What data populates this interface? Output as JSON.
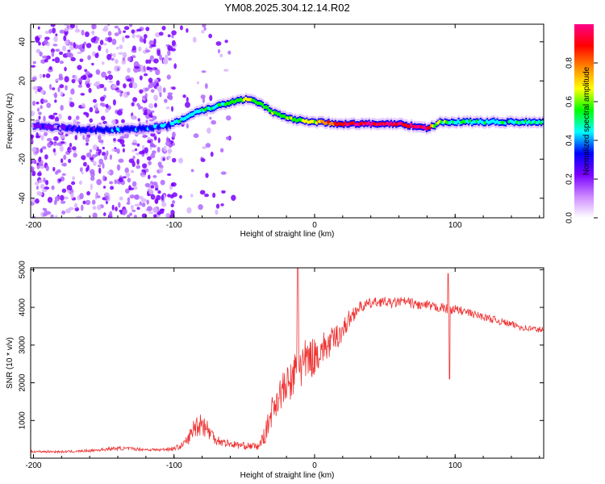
{
  "chart_data": [
    {
      "type": "heatmap",
      "title": "YM08.2025.304.12.14.R02",
      "xlabel": "Height of straight line (km)",
      "ylabel": "Frequency (Hz)",
      "xlim": [
        -202,
        163
      ],
      "ylim": [
        -50,
        49
      ],
      "xticks": [
        -200,
        -100,
        0,
        100
      ],
      "yticks": [
        -40,
        -20,
        0,
        20,
        40
      ],
      "colorbar": {
        "label": "Normalized spectral amplitude",
        "range": [
          0,
          1
        ],
        "ticks": [
          0.0,
          0.2,
          0.4,
          0.6,
          0.8
        ],
        "tick_labels": [
          "0.0",
          "0.2",
          "0.4",
          "0.6",
          "0.8"
        ],
        "colors": [
          "#ffffff",
          "#cc88ff",
          "#7a00ff",
          "#0000ff",
          "#00ffff",
          "#00ff00",
          "#ffff00",
          "#ff8800",
          "#ff0000",
          "#ff0088"
        ]
      },
      "ridge": {
        "x": [
          -200,
          -180,
          -160,
          -140,
          -120,
          -105,
          -95,
          -85,
          -75,
          -65,
          -55,
          -45,
          -40,
          -30,
          -20,
          -10,
          0,
          20,
          40,
          60,
          70,
          75,
          80,
          85,
          90,
          100,
          120,
          140,
          163
        ],
        "frequency": [
          -3,
          -4,
          -5,
          -5,
          -4,
          -3,
          0,
          4,
          6,
          8,
          10,
          11,
          9,
          4,
          1,
          0,
          -1,
          -2,
          -2,
          -2,
          -3,
          -4,
          -4,
          -3,
          -1,
          -1,
          -1,
          -1,
          -1
        ],
        "amplitude": [
          0.15,
          0.18,
          0.28,
          0.3,
          0.3,
          0.35,
          0.38,
          0.42,
          0.45,
          0.48,
          0.5,
          0.55,
          0.52,
          0.5,
          0.5,
          0.55,
          0.6,
          0.85,
          0.9,
          0.85,
          0.9,
          0.95,
          0.9,
          0.6,
          0.5,
          0.45,
          0.42,
          0.4,
          0.4
        ]
      }
    },
    {
      "type": "line",
      "xlabel": "Height of straight line (km)",
      "ylabel": "SNR (10 * v/v)",
      "xlim": [
        -202,
        163
      ],
      "ylim": [
        0,
        5050
      ],
      "xticks": [
        -200,
        -100,
        0,
        100
      ],
      "yticks": [
        1000,
        2000,
        3000,
        4000,
        5000
      ],
      "color": "#ee3333",
      "series": [
        {
          "name": "SNR",
          "x": [
            -202,
            -190,
            -180,
            -170,
            -160,
            -150,
            -140,
            -130,
            -120,
            -110,
            -100,
            -95,
            -90,
            -85,
            -80,
            -75,
            -70,
            -65,
            -60,
            -55,
            -50,
            -45,
            -40,
            -35,
            -30,
            -25,
            -20,
            -15,
            -12,
            -10,
            -8,
            -5,
            0,
            5,
            10,
            15,
            20,
            25,
            30,
            35,
            40,
            45,
            50,
            55,
            60,
            65,
            70,
            75,
            80,
            85,
            90,
            95,
            100,
            110,
            120,
            130,
            140,
            150,
            163
          ],
          "values": [
            180,
            175,
            170,
            180,
            200,
            230,
            260,
            250,
            230,
            220,
            260,
            320,
            500,
            850,
            950,
            700,
            500,
            420,
            380,
            350,
            330,
            320,
            300,
            650,
            1300,
            1700,
            1900,
            2100,
            2500,
            2600,
            2400,
            2600,
            2700,
            2900,
            3000,
            3200,
            3400,
            3700,
            3950,
            4050,
            4100,
            4150,
            4150,
            4100,
            4150,
            4150,
            4100,
            4050,
            4050,
            4000,
            4000,
            3950,
            3950,
            3850,
            3750,
            3650,
            3550,
            3450,
            3400
          ],
          "noise": [
            30,
            30,
            30,
            30,
            35,
            40,
            50,
            45,
            40,
            40,
            60,
            80,
            150,
            300,
            350,
            250,
            150,
            120,
            100,
            100,
            90,
            90,
            90,
            250,
            400,
            450,
            500,
            550,
            800,
            900,
            700,
            600,
            500,
            450,
            400,
            350,
            300,
            250,
            180,
            150,
            140,
            130,
            130,
            130,
            130,
            130,
            130,
            130,
            130,
            130,
            130,
            130,
            120,
            110,
            100,
            100,
            90,
            90,
            90
          ]
        }
      ]
    }
  ]
}
